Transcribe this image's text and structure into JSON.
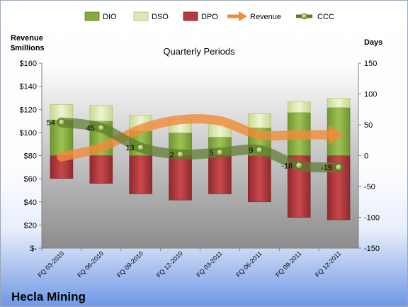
{
  "chart_data": {
    "type": "bar",
    "title": "Quarterly Periods",
    "company": "Hecla Mining",
    "left_axis_title": [
      "Revenue",
      "$millions"
    ],
    "right_axis_title": "Days",
    "categories": [
      "FQ 03-2010",
      "FQ 06-2010",
      "FQ 09-2010",
      "FQ 12-2010",
      "FQ 03-2011",
      "FQ 06-2011",
      "FQ 09-2011",
      "FQ 12-2011"
    ],
    "left_axis": {
      "min": 0,
      "max": 160,
      "ticks": [
        "$-",
        "$20",
        "$40",
        "$60",
        "$80",
        "$100",
        "$120",
        "$140",
        "$160"
      ]
    },
    "right_axis": {
      "min": -150,
      "max": 150,
      "ticks": [
        "-150",
        "-100",
        "-50",
        "0",
        "50",
        "100",
        "150"
      ]
    },
    "series": [
      {
        "name": "DIO",
        "type": "stacked-bar",
        "axis": "days",
        "base": 0,
        "values": [
          58,
          56,
          40,
          37,
          30,
          45,
          70,
          78
        ],
        "color": "#84ac3c"
      },
      {
        "name": "DSO",
        "type": "stacked-bar",
        "axis": "days",
        "values": [
          25,
          25,
          25,
          22,
          23,
          23,
          17,
          15
        ],
        "color": "#dde9b4"
      },
      {
        "name": "DPO",
        "type": "bar-negative",
        "axis": "days",
        "values": [
          -37,
          -45,
          -62,
          -72,
          -62,
          -75,
          -100,
          -104
        ],
        "color": "#b33a3d"
      },
      {
        "name": "Revenue",
        "type": "line",
        "axis": "revenue",
        "values": [
          79,
          87,
          103,
          111,
          110,
          98,
          98,
          98
        ],
        "color": "#ef8c3a"
      },
      {
        "name": "CCC",
        "type": "line",
        "axis": "days",
        "values": [
          54,
          45,
          13,
          2,
          5,
          9,
          -16,
          -19
        ],
        "labels": [
          "54",
          "45",
          "13",
          "2",
          "5",
          "9",
          "-16",
          "-19"
        ],
        "color": "#5e7a2e"
      }
    ],
    "legend": {
      "placement": "top",
      "items": [
        "DIO",
        "DSO",
        "DPO",
        "Revenue",
        "CCC"
      ]
    },
    "grid": false
  }
}
